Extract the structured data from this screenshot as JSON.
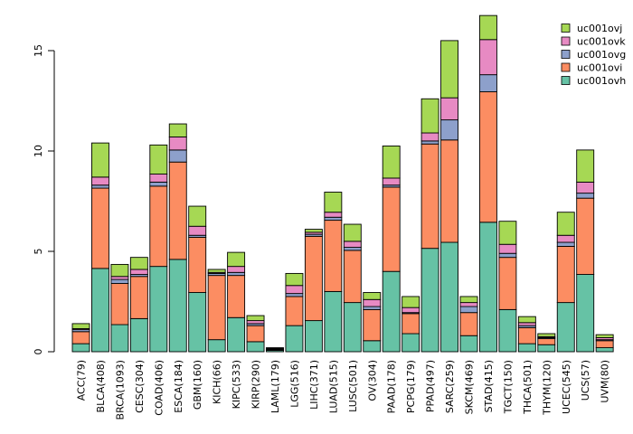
{
  "chart_data": {
    "type": "bar",
    "stacked": true,
    "title": "",
    "xlabel": "",
    "ylabel": "",
    "ylim": [
      0,
      17
    ],
    "yticks": [
      0,
      5,
      10,
      15
    ],
    "legend_position": "top-right",
    "categories": [
      "ACC(79)",
      "BLCA(408)",
      "BRCA(1093)",
      "CESC(304)",
      "COAD(406)",
      "ESCA(184)",
      "GBM(160)",
      "KICH(66)",
      "KIPC(533)",
      "KIRP(290)",
      "LAML(179)",
      "LGG(516)",
      "LIHC(371)",
      "LUAD(515)",
      "LUSC(501)",
      "OV(304)",
      "PAAD(178)",
      "PCPG(179)",
      "PPAD(497)",
      "SARC(259)",
      "SKCM(469)",
      "STAD(415)",
      "TGCT(150)",
      "THCA(501)",
      "THYM(120)",
      "UCEC(545)",
      "UCS(57)",
      "UVM(80)"
    ],
    "series": [
      {
        "name": "uc001ovh",
        "color": "#66c2a5",
        "values": [
          0.4,
          4.15,
          1.35,
          1.65,
          4.25,
          4.6,
          2.95,
          0.6,
          1.7,
          0.5,
          0.07,
          1.3,
          1.55,
          3.0,
          2.45,
          0.55,
          4.0,
          0.9,
          5.15,
          5.45,
          0.8,
          6.45,
          2.1,
          0.4,
          0.35,
          2.45,
          3.85,
          0.2
        ]
      },
      {
        "name": "uc001ovi",
        "color": "#fc8d62",
        "values": [
          0.6,
          4.0,
          2.05,
          2.1,
          4.0,
          4.85,
          2.75,
          3.2,
          2.1,
          0.8,
          0.03,
          1.45,
          4.2,
          3.55,
          2.6,
          1.55,
          4.2,
          1.0,
          5.2,
          5.1,
          1.15,
          6.5,
          2.6,
          0.8,
          0.3,
          2.8,
          3.8,
          0.35
        ]
      },
      {
        "name": "uc001ovg",
        "color": "#8da0cb",
        "values": [
          0.1,
          0.15,
          0.2,
          0.1,
          0.2,
          0.6,
          0.1,
          0.1,
          0.15,
          0.1,
          0.04,
          0.15,
          0.1,
          0.15,
          0.15,
          0.15,
          0.1,
          0.05,
          0.15,
          1.0,
          0.3,
          0.85,
          0.2,
          0.1,
          0.05,
          0.2,
          0.25,
          0.05
        ]
      },
      {
        "name": "uc001ovk",
        "color": "#e78ac3",
        "values": [
          0.05,
          0.4,
          0.15,
          0.25,
          0.4,
          0.65,
          0.45,
          0.05,
          0.3,
          0.15,
          0.03,
          0.4,
          0.1,
          0.25,
          0.3,
          0.35,
          0.35,
          0.25,
          0.4,
          1.1,
          0.2,
          1.75,
          0.45,
          0.15,
          0.05,
          0.35,
          0.55,
          0.1
        ]
      },
      {
        "name": "uc001ovj",
        "color": "#a6d854",
        "values": [
          0.25,
          1.7,
          0.6,
          0.6,
          1.45,
          0.65,
          1.0,
          0.15,
          0.7,
          0.25,
          0.03,
          0.6,
          0.15,
          1.0,
          0.85,
          0.35,
          1.6,
          0.55,
          1.7,
          2.85,
          0.3,
          1.2,
          1.15,
          0.3,
          0.15,
          1.15,
          1.6,
          0.15
        ]
      }
    ]
  }
}
